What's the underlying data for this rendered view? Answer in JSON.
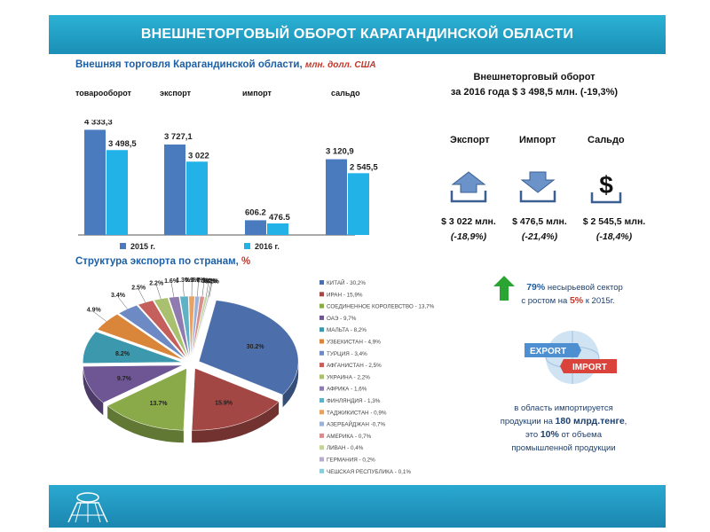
{
  "title": "ВНЕШНЕТОРГОВЫЙ ОБОРОТ КАРАГАНДИНСКОЙ ОБЛАСТИ",
  "trade_section": {
    "title": "Внешняя торговля Карагандинской области,",
    "unit": "млн. долл. США"
  },
  "summary": {
    "head_line1": "Внешнеторговый оборот",
    "head_line2": "за 2016 года $ 3 498,5 млн. (-19,3%)",
    "items": [
      {
        "label": "Экспорт",
        "icon": "export-tray-arrow-up-icon",
        "value": "$ 3 022 млн.",
        "change": "(-18,9%)"
      },
      {
        "label": "Импорт",
        "icon": "import-tray-arrow-down-icon",
        "value": "$ 476,5 млн.",
        "change": "(-21,4%)"
      },
      {
        "label": "Сальдо",
        "icon": "dollar-icon",
        "value": "$ 2 545,5 млн.",
        "change": "(-18,4%)"
      }
    ]
  },
  "export_structure": {
    "title": "Структура экспорта по странам,",
    "unit": "%"
  },
  "non_resource": {
    "percent": "79%",
    "text1": " несырьевой сектор",
    "text2": "с ростом на ",
    "growth": "5%",
    "text3": " к 2015г."
  },
  "import_note": {
    "line1": "в область импортируется",
    "line2a": "продукции на ",
    "line2b": "180 млрд.тенге",
    "line2c": ",",
    "line3a": "это ",
    "line3b": "10%",
    "line3c": " от объема",
    "line4": "промышленной продукции"
  },
  "export_import_logo": {
    "word1": "EXPORT",
    "word2": "IMPORT"
  },
  "colors": {
    "s2015": "#4a7bbf",
    "s2016": "#22b2e8",
    "title_bar": "#1e98c2",
    "heading": "#1d5fa4",
    "accent_red": "#c0392b",
    "arrow_green": "#2aa534"
  },
  "chart_data": [
    {
      "type": "bar",
      "categories": [
        "товарооборот",
        "экспорт",
        "импорт",
        "сальдо"
      ],
      "series": [
        {
          "name": "2015 г.",
          "values": [
            4333.3,
            3727.1,
            606.2,
            3120.9
          ],
          "labels": [
            "4 333,3",
            "3 727,1",
            "606.2",
            "3 120,9"
          ]
        },
        {
          "name": "2016 г.",
          "values": [
            3498.5,
            3022,
            476.5,
            2545.5
          ],
          "labels": [
            "3 498,5",
            "3 022",
            "476.5",
            "2 545,5"
          ]
        }
      ],
      "ylim": [
        0,
        5000
      ],
      "legend": "bottom",
      "grid": false
    },
    {
      "type": "pie",
      "legend": "right",
      "labels": [
        "КИТАЙ - 30,2%",
        "ИРАН - 15,9%",
        "СОЕДИНЕННОЕ КОРОЛЕВСТВО - 13,7%",
        "ОАЭ - 9,7%",
        "МАЛЬТА - 8,2%",
        "УЗБЕКИСТАН - 4,9%",
        "ТУРЦИЯ - 3,4%",
        "АФГАНИСТАН - 2,5%",
        "УКРАИНА - 2,2%",
        "АФРИКА - 1,6%",
        "ФИНЛЯНДИЯ - 1,3%",
        "ТАДЖИКИСТАН - 0,9%",
        "АЗЕРБАЙДЖАН -0,7%",
        "АМЕРИКА - 0,7%",
        "ЛИВАН - 0,4%",
        "ГЕРМАНИЯ - 0,2%",
        "ЧЕШСКАЯ РЕСПУБЛИКА - 0,1%"
      ],
      "values": [
        30.2,
        15.9,
        13.7,
        9.7,
        8.2,
        4.9,
        3.4,
        2.5,
        2.2,
        1.6,
        1.3,
        0.9,
        0.7,
        0.7,
        0.4,
        0.2,
        0.1
      ],
      "data_labels": [
        "30.2%",
        "15.9%",
        "13.7%",
        "9.7%",
        "8.2%",
        "4.9%",
        "3.4%",
        "2.5%",
        "2.2%",
        "1.6%",
        "1.3%",
        "0.9%",
        "0.7%",
        "0.7%",
        "0.4%",
        "0.2%",
        "0.1%"
      ],
      "colors": [
        "#4c6fab",
        "#a34744",
        "#8aaa4a",
        "#6e5594",
        "#3c98ad",
        "#d9853a",
        "#6d8ac4",
        "#c45f5c",
        "#a9c16e",
        "#8f7bb0",
        "#5fb2c6",
        "#e7a164",
        "#9bb1d8",
        "#d78e8c",
        "#c3d59a",
        "#b8abcd",
        "#8ccbd9"
      ]
    }
  ]
}
